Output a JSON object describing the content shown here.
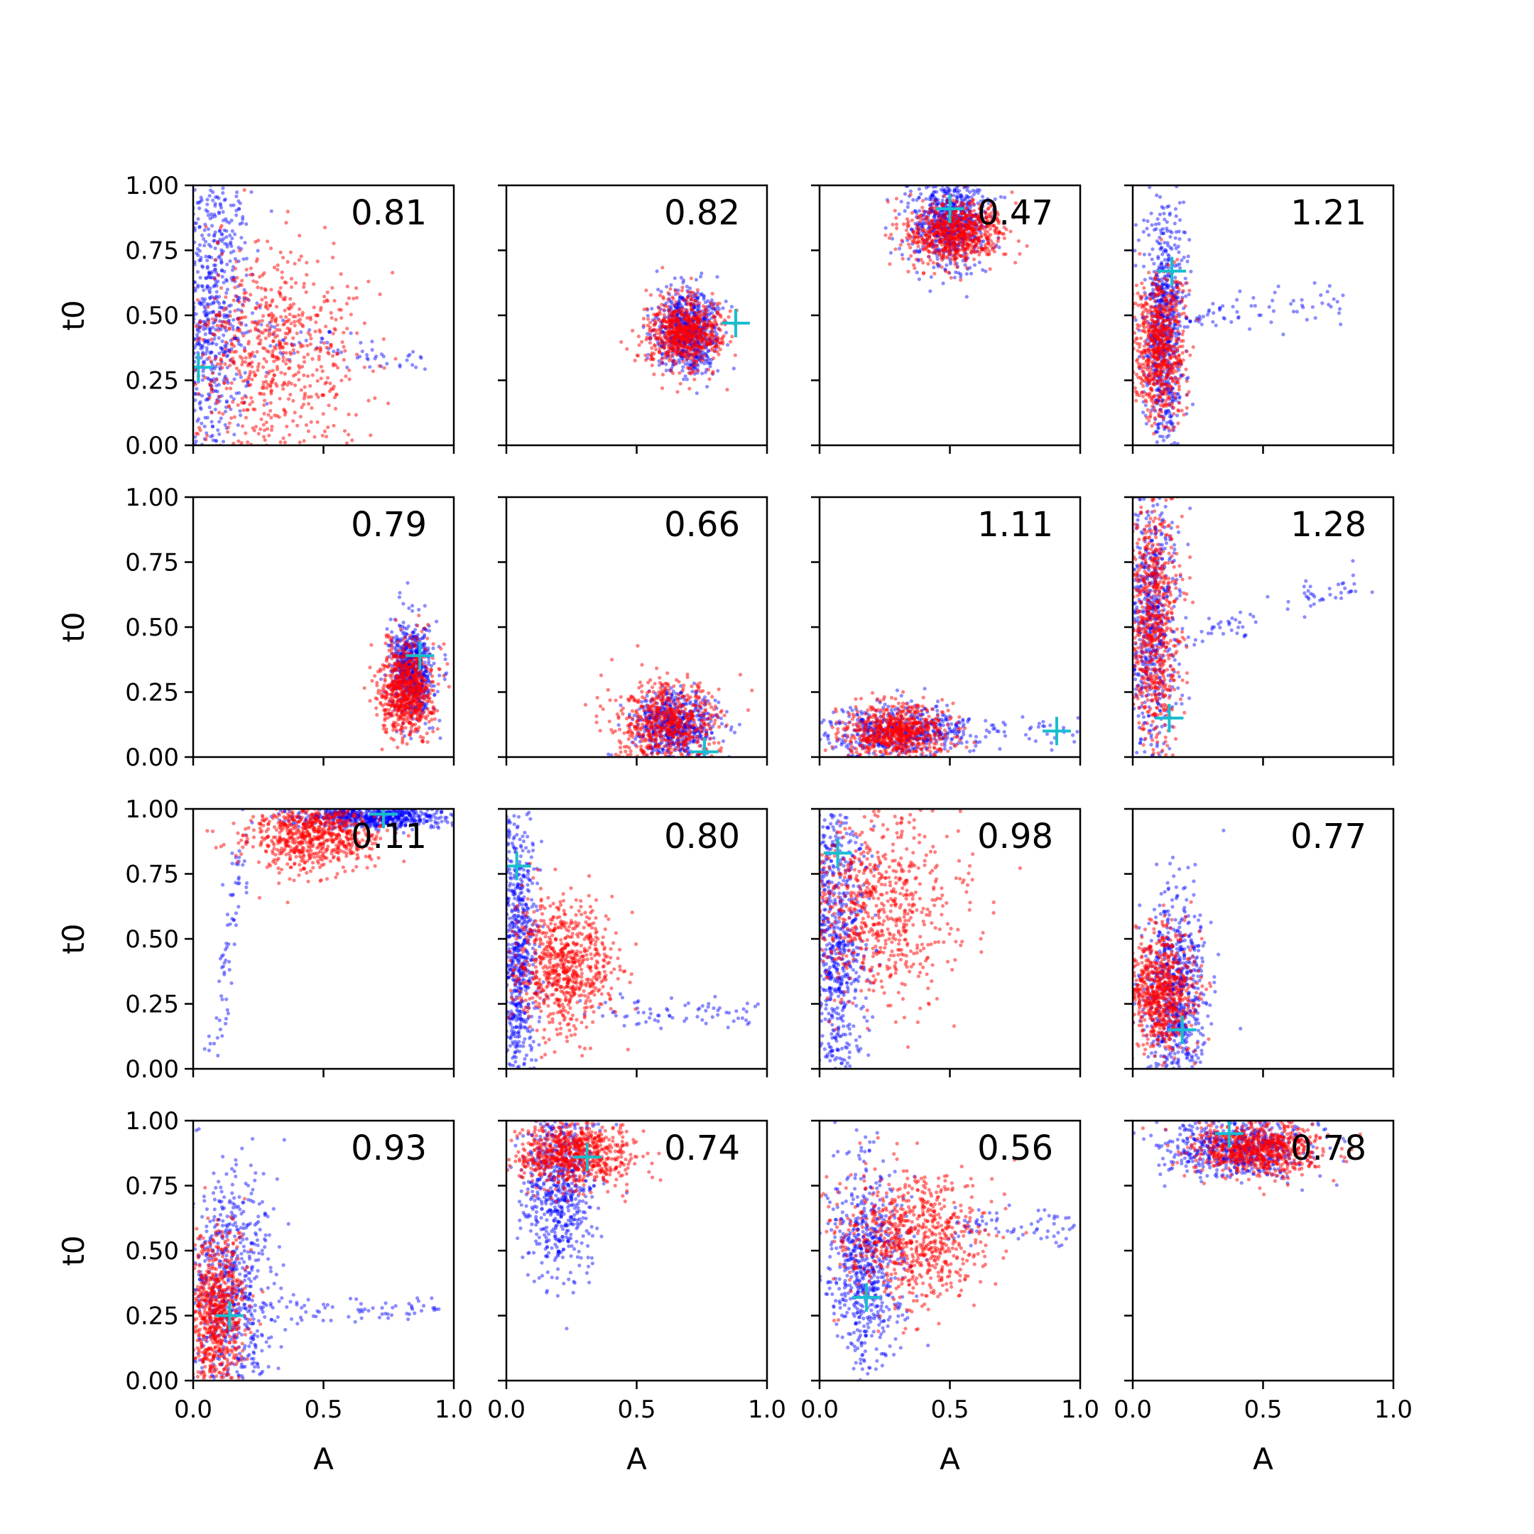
{
  "chart_data": {
    "type": "scatter",
    "layout": "4x4 grid of scatter panels, shared x and y axes",
    "xlabel": "A",
    "ylabel": "t0",
    "xlim": [
      0,
      1
    ],
    "ylim": [
      0,
      1
    ],
    "x_ticks": [
      "0.0",
      "0.5",
      "1.0"
    ],
    "y_ticks": [
      "0.00",
      "0.25",
      "0.50",
      "0.75",
      "1.00"
    ],
    "grid": false,
    "series_colors": {
      "series_1": "#ff0000",
      "series_2": "#0000ff",
      "truth_marker": "#17becf"
    },
    "panels": [
      {
        "label": "0.81",
        "truth": [
          0.02,
          0.3
        ],
        "red": {
          "center": [
            0.3,
            0.35
          ],
          "spread": [
            0.18,
            0.22
          ],
          "n": 750
        },
        "blue": {
          "center": [
            0.06,
            0.5
          ],
          "spread": [
            0.08,
            0.3
          ],
          "n": 750,
          "tail": [
            [
              0.15,
              0.45
            ],
            [
              0.9,
              0.3
            ]
          ]
        }
      },
      {
        "label": "0.82",
        "truth": [
          0.88,
          0.47
        ],
        "red": {
          "center": [
            0.68,
            0.43
          ],
          "spread": [
            0.07,
            0.07
          ],
          "n": 700
        },
        "blue": {
          "center": [
            0.7,
            0.44
          ],
          "spread": [
            0.06,
            0.08
          ],
          "n": 700
        }
      },
      {
        "label": "0.47",
        "truth": [
          0.5,
          0.91
        ],
        "red": {
          "center": [
            0.52,
            0.82
          ],
          "spread": [
            0.09,
            0.06
          ],
          "n": 750
        },
        "blue": {
          "center": [
            0.5,
            0.86
          ],
          "spread": [
            0.07,
            0.08
          ],
          "n": 700
        }
      },
      {
        "label": "1.21",
        "truth": [
          0.15,
          0.67
        ],
        "red": {
          "center": [
            0.1,
            0.38
          ],
          "spread": [
            0.05,
            0.14
          ],
          "n": 700
        },
        "blue": {
          "center": [
            0.12,
            0.45
          ],
          "spread": [
            0.04,
            0.22
          ],
          "n": 700,
          "tail": [
            [
              0.2,
              0.5
            ],
            [
              0.8,
              0.55
            ]
          ]
        }
      },
      {
        "label": "0.79",
        "truth": [
          0.87,
          0.39
        ],
        "red": {
          "center": [
            0.82,
            0.26
          ],
          "spread": [
            0.05,
            0.09
          ],
          "n": 750
        },
        "blue": {
          "center": [
            0.84,
            0.33
          ],
          "spread": [
            0.04,
            0.09
          ],
          "n": 650
        }
      },
      {
        "label": "0.66",
        "truth": [
          0.76,
          0.02
        ],
        "red": {
          "center": [
            0.62,
            0.12
          ],
          "spread": [
            0.1,
            0.08
          ],
          "n": 650
        },
        "blue": {
          "center": [
            0.65,
            0.12
          ],
          "spread": [
            0.08,
            0.07
          ],
          "n": 600
        }
      },
      {
        "label": "1.11",
        "truth": [
          0.91,
          0.1
        ],
        "red": {
          "center": [
            0.3,
            0.1
          ],
          "spread": [
            0.1,
            0.05
          ],
          "n": 700
        },
        "blue": {
          "center": [
            0.3,
            0.1
          ],
          "spread": [
            0.13,
            0.05
          ],
          "n": 500,
          "tail": [
            [
              0.4,
              0.11
            ],
            [
              0.98,
              0.1
            ]
          ]
        }
      },
      {
        "label": "1.28",
        "truth": [
          0.14,
          0.15
        ],
        "red": {
          "center": [
            0.08,
            0.5
          ],
          "spread": [
            0.05,
            0.24
          ],
          "n": 700
        },
        "blue": {
          "center": [
            0.07,
            0.55
          ],
          "spread": [
            0.05,
            0.28
          ],
          "n": 650,
          "tail": [
            [
              0.2,
              0.45
            ],
            [
              0.9,
              0.68
            ]
          ]
        }
      },
      {
        "label": "0.11",
        "truth": [
          0.73,
          0.98
        ],
        "red": {
          "center": [
            0.45,
            0.9
          ],
          "spread": [
            0.13,
            0.07
          ],
          "n": 750
        },
        "blue": {
          "center": [
            0.7,
            0.97
          ],
          "spread": [
            0.14,
            0.02
          ],
          "n": 600,
          "tail": [
            [
              0.08,
              0.05
            ],
            [
              0.2,
              0.9
            ]
          ]
        }
      },
      {
        "label": "0.80",
        "truth": [
          0.04,
          0.78
        ],
        "red": {
          "center": [
            0.22,
            0.4
          ],
          "spread": [
            0.1,
            0.12
          ],
          "n": 750
        },
        "blue": {
          "center": [
            0.04,
            0.45
          ],
          "spread": [
            0.04,
            0.3
          ],
          "n": 750,
          "tail": [
            [
              0.3,
              0.22
            ],
            [
              0.95,
              0.22
            ]
          ]
        }
      },
      {
        "label": "0.98",
        "truth": [
          0.07,
          0.83
        ],
        "red": {
          "center": [
            0.22,
            0.62
          ],
          "spread": [
            0.16,
            0.18
          ],
          "n": 750
        },
        "blue": {
          "center": [
            0.06,
            0.5
          ],
          "spread": [
            0.06,
            0.3
          ],
          "n": 750
        }
      },
      {
        "label": "0.77",
        "truth": [
          0.19,
          0.15
        ],
        "red": {
          "center": [
            0.1,
            0.3
          ],
          "spread": [
            0.07,
            0.12
          ],
          "n": 750
        },
        "blue": {
          "center": [
            0.16,
            0.28
          ],
          "spread": [
            0.06,
            0.2
          ],
          "n": 700
        }
      },
      {
        "label": "0.93",
        "truth": [
          0.14,
          0.25
        ],
        "red": {
          "center": [
            0.08,
            0.25
          ],
          "spread": [
            0.06,
            0.15
          ],
          "n": 750
        },
        "blue": {
          "center": [
            0.15,
            0.3
          ],
          "spread": [
            0.08,
            0.25
          ],
          "n": 700,
          "tail": [
            [
              0.3,
              0.27
            ],
            [
              0.98,
              0.27
            ]
          ]
        }
      },
      {
        "label": "0.74",
        "truth": [
          0.31,
          0.86
        ],
        "red": {
          "center": [
            0.26,
            0.87
          ],
          "spread": [
            0.11,
            0.06
          ],
          "n": 750
        },
        "blue": {
          "center": [
            0.2,
            0.75
          ],
          "spread": [
            0.07,
            0.17
          ],
          "n": 650
        }
      },
      {
        "label": "0.56",
        "truth": [
          0.18,
          0.32
        ],
        "red": {
          "center": [
            0.35,
            0.55
          ],
          "spread": [
            0.14,
            0.12
          ],
          "n": 750
        },
        "blue": {
          "center": [
            0.18,
            0.45
          ],
          "spread": [
            0.07,
            0.2
          ],
          "n": 650,
          "tail": [
            [
              0.5,
              0.6
            ],
            [
              0.98,
              0.58
            ]
          ]
        }
      },
      {
        "label": "0.78",
        "truth": [
          0.37,
          0.95
        ],
        "red": {
          "center": [
            0.48,
            0.89
          ],
          "spread": [
            0.12,
            0.05
          ],
          "n": 750
        },
        "blue": {
          "center": [
            0.4,
            0.9
          ],
          "spread": [
            0.14,
            0.06
          ],
          "n": 650
        }
      }
    ]
  }
}
